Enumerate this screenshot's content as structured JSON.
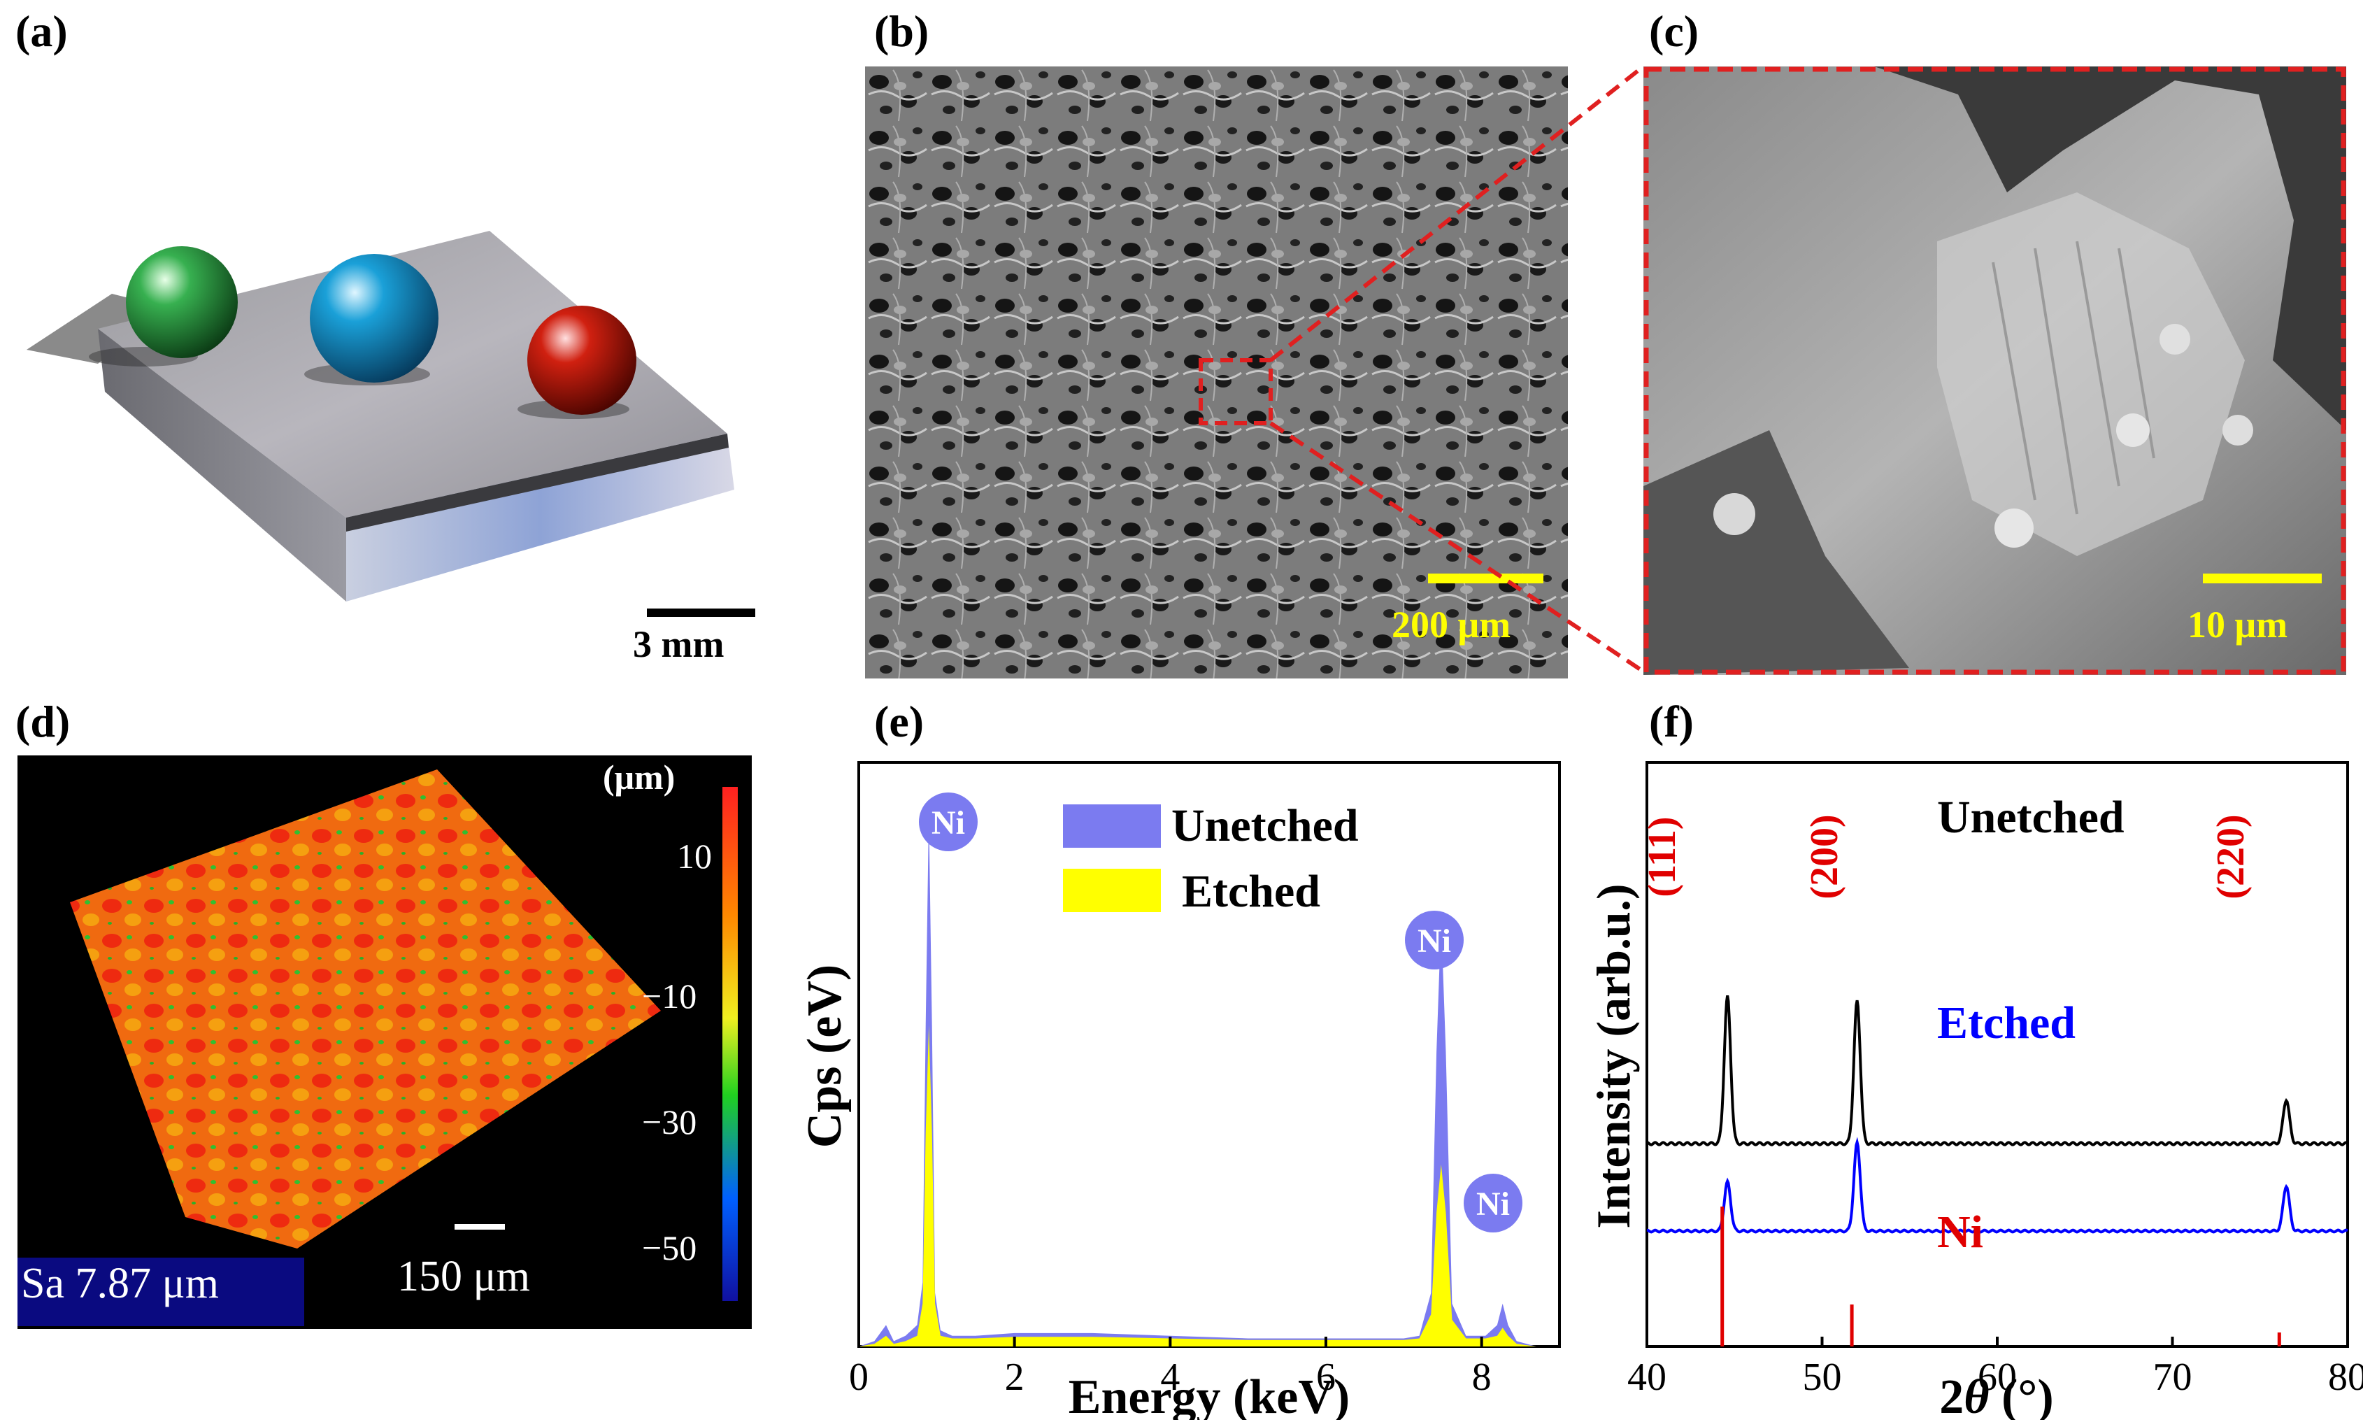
{
  "panels": {
    "a": {
      "label": "(a)",
      "scale_bar": "3 mm"
    },
    "b": {
      "label": "(b)",
      "scale_bar": "200 μm"
    },
    "c": {
      "label": "(c)",
      "scale_bar": "10 μm"
    },
    "d": {
      "label": "(d)",
      "colorbar_unit": "(μm)",
      "colorbar_ticks": [
        "10",
        "−10",
        "−30",
        "−50"
      ],
      "sa_label": "Sa 7.87 μm",
      "scale_bar": "150 μm"
    },
    "e": {
      "label": "(e)"
    },
    "f": {
      "label": "(f)"
    }
  },
  "colors": {
    "unetched_eds": "#7b7bf0",
    "etched_eds": "#ffff00",
    "scale_bar": "#ffff00",
    "zoom_box": "#e02020",
    "xrd_unetched": "#000000",
    "xrd_etched": "#0000ff",
    "xrd_ni": "#e00000"
  },
  "chart_data": [
    {
      "type": "area",
      "title": "",
      "xlabel": "Energy (keV)",
      "ylabel": "Cps (eV)",
      "xlim": [
        0,
        9
      ],
      "ylim": [
        0,
        1.0
      ],
      "x_ticks": [
        "0",
        "2",
        "4",
        "6",
        "8"
      ],
      "legend": [
        "Unetched",
        "Etched"
      ],
      "legend_position": "top-right",
      "peak_labels": [
        "Ni",
        "Ni",
        "Ni"
      ],
      "series": [
        {
          "name": "Unetched",
          "x": [
            0,
            0.2,
            0.35,
            0.45,
            0.6,
            0.75,
            0.82,
            0.86,
            0.9,
            0.94,
            0.98,
            1.05,
            1.2,
            1.5,
            2,
            3,
            4,
            5,
            6,
            7,
            7.2,
            7.35,
            7.42,
            7.48,
            7.54,
            7.62,
            7.8,
            8.05,
            8.2,
            8.27,
            8.34,
            8.45,
            8.7,
            9.0
          ],
          "values": [
            0.0,
            0.01,
            0.04,
            0.01,
            0.02,
            0.04,
            0.12,
            0.6,
            1.0,
            0.6,
            0.1,
            0.03,
            0.02,
            0.02,
            0.025,
            0.025,
            0.02,
            0.015,
            0.015,
            0.015,
            0.02,
            0.1,
            0.55,
            0.8,
            0.55,
            0.08,
            0.02,
            0.02,
            0.04,
            0.08,
            0.04,
            0.01,
            0.0,
            0.0
          ]
        },
        {
          "name": "Etched",
          "x": [
            0,
            0.2,
            0.35,
            0.45,
            0.6,
            0.75,
            0.82,
            0.86,
            0.9,
            0.94,
            0.98,
            1.05,
            1.2,
            1.5,
            2,
            3,
            4,
            5,
            6,
            7,
            7.2,
            7.35,
            7.42,
            7.48,
            7.54,
            7.62,
            7.8,
            8.05,
            8.2,
            8.27,
            8.34,
            8.45,
            8.7,
            9.0
          ],
          "values": [
            0.0,
            0.005,
            0.02,
            0.005,
            0.01,
            0.02,
            0.08,
            0.4,
            0.6,
            0.4,
            0.08,
            0.02,
            0.015,
            0.015,
            0.018,
            0.018,
            0.015,
            0.012,
            0.012,
            0.012,
            0.015,
            0.06,
            0.25,
            0.34,
            0.25,
            0.05,
            0.015,
            0.015,
            0.02,
            0.035,
            0.02,
            0.005,
            0.0,
            0.0
          ]
        }
      ]
    },
    {
      "type": "line",
      "title": "",
      "xlabel": "2θ (°)",
      "xlabel_symbol": "θ",
      "xlabel_prefix": "2",
      "xlabel_suffix": " (°)",
      "ylabel": "Intensity (arb.u.)",
      "xlim": [
        40,
        80
      ],
      "x_ticks": [
        "40",
        "50",
        "60",
        "70",
        "80"
      ],
      "peak_indices": [
        "(111)",
        "(200)",
        "(220)"
      ],
      "series": [
        {
          "name": "Unetched",
          "peaks_x": [
            44.6,
            52.0,
            76.5
          ],
          "peaks_rel": [
            1.0,
            0.97,
            0.3
          ]
        },
        {
          "name": "Etched",
          "peaks_x": [
            44.6,
            52.0,
            76.5
          ],
          "peaks_rel": [
            0.4,
            0.72,
            0.37
          ]
        },
        {
          "name": "Ni",
          "peaks_x": [
            44.3,
            51.7,
            76.1
          ],
          "peaks_rel": [
            1.0,
            0.3,
            0.1
          ]
        }
      ]
    }
  ]
}
